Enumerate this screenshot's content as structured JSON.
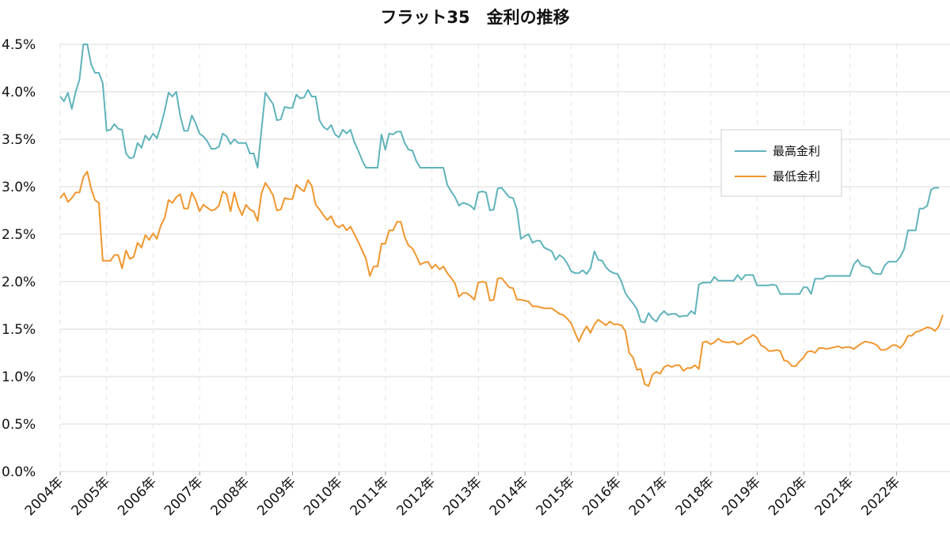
{
  "chart_data": {
    "type": "line",
    "title": "フラット35　金利の推移",
    "xlabel": "",
    "ylabel": "",
    "ylim": [
      0,
      4.5
    ],
    "yticks": [
      "0.0%",
      "0.5%",
      "1.0%",
      "1.5%",
      "2.0%",
      "2.5%",
      "3.0%",
      "3.5%",
      "4.0%",
      "4.5%"
    ],
    "xticks": [
      "2004年",
      "2005年",
      "2006年",
      "2007年",
      "2008年",
      "2009年",
      "2010年",
      "2011年",
      "2012年",
      "2013年",
      "2014年",
      "2015年",
      "2016年",
      "2017年",
      "2018年",
      "2019年",
      "2020年",
      "2021年",
      "2022年"
    ],
    "x_start": 2004,
    "x_step": 0.0833,
    "grid": true,
    "legend_position": "right",
    "colors": {
      "max": "#5fb3bb",
      "min": "#f0962e",
      "grid": "#d9d9d9"
    },
    "series": [
      {
        "name": "最高金利",
        "values": [
          3.95,
          3.9,
          3.99,
          3.82,
          4.0,
          4.13,
          4.5,
          4.5,
          4.29,
          4.2,
          4.2,
          4.09,
          3.59,
          3.6,
          3.66,
          3.61,
          3.6,
          3.35,
          3.3,
          3.31,
          3.46,
          3.41,
          3.54,
          3.49,
          3.56,
          3.51,
          3.64,
          3.8,
          3.99,
          3.95,
          4.0,
          3.75,
          3.59,
          3.59,
          3.75,
          3.67,
          3.56,
          3.53,
          3.48,
          3.4,
          3.4,
          3.42,
          3.56,
          3.53,
          3.45,
          3.5,
          3.46,
          3.46,
          3.46,
          3.35,
          3.35,
          3.2,
          3.6,
          3.99,
          3.93,
          3.87,
          3.7,
          3.71,
          3.84,
          3.83,
          3.83,
          3.97,
          3.93,
          3.94,
          4.02,
          3.95,
          3.95,
          3.7,
          3.63,
          3.6,
          3.65,
          3.55,
          3.52,
          3.6,
          3.56,
          3.6,
          3.47,
          3.38,
          3.28,
          3.2,
          3.2,
          3.2,
          3.2,
          3.55,
          3.39,
          3.56,
          3.55,
          3.58,
          3.58,
          3.46,
          3.39,
          3.38,
          3.27,
          3.2,
          3.2,
          3.2,
          3.2,
          3.2,
          3.2,
          3.2,
          3.02,
          2.95,
          2.89,
          2.8,
          2.83,
          2.82,
          2.8,
          2.76,
          2.94,
          2.95,
          2.94,
          2.75,
          2.76,
          2.98,
          2.99,
          2.94,
          2.89,
          2.88,
          2.76,
          2.45,
          2.48,
          2.5,
          2.41,
          2.43,
          2.43,
          2.36,
          2.34,
          2.32,
          2.23,
          2.28,
          2.25,
          2.19,
          2.11,
          2.09,
          2.09,
          2.12,
          2.08,
          2.14,
          2.32,
          2.23,
          2.22,
          2.15,
          2.11,
          2.09,
          2.08,
          2.0,
          1.88,
          1.82,
          1.77,
          1.71,
          1.58,
          1.57,
          1.67,
          1.61,
          1.58,
          1.65,
          1.69,
          1.65,
          1.66,
          1.66,
          1.63,
          1.64,
          1.64,
          1.69,
          1.66,
          1.97,
          1.99,
          1.99,
          1.99,
          2.05,
          2.01,
          2.01,
          2.01,
          2.01,
          2.01,
          2.07,
          2.02,
          2.07,
          2.07,
          2.07,
          1.96,
          1.96,
          1.96,
          1.96,
          1.97,
          1.96,
          1.87,
          1.87,
          1.87,
          1.87,
          1.87,
          1.87,
          1.94,
          1.94,
          1.87,
          2.03,
          2.03,
          2.03,
          2.06,
          2.06,
          2.06,
          2.06,
          2.06,
          2.06,
          2.06,
          2.18,
          2.23,
          2.17,
          2.16,
          2.15,
          2.09,
          2.08,
          2.08,
          2.17,
          2.21,
          2.21,
          2.21,
          2.26,
          2.34,
          2.54,
          2.54,
          2.54,
          2.77,
          2.77,
          2.8,
          2.97,
          2.99,
          2.99
        ]
      },
      {
        "name": "最低金利",
        "values": [
          2.88,
          2.93,
          2.84,
          2.88,
          2.94,
          2.94,
          3.1,
          3.16,
          2.98,
          2.86,
          2.83,
          2.22,
          2.22,
          2.22,
          2.28,
          2.28,
          2.14,
          2.33,
          2.24,
          2.26,
          2.41,
          2.36,
          2.49,
          2.44,
          2.51,
          2.45,
          2.59,
          2.67,
          2.86,
          2.83,
          2.89,
          2.92,
          2.77,
          2.77,
          2.94,
          2.86,
          2.74,
          2.81,
          2.78,
          2.75,
          2.76,
          2.8,
          2.95,
          2.92,
          2.74,
          2.94,
          2.79,
          2.7,
          2.81,
          2.76,
          2.74,
          2.64,
          2.93,
          3.04,
          2.98,
          2.91,
          2.75,
          2.76,
          2.88,
          2.87,
          2.87,
          3.02,
          2.98,
          2.95,
          3.07,
          3.01,
          2.81,
          2.76,
          2.7,
          2.65,
          2.69,
          2.6,
          2.57,
          2.6,
          2.54,
          2.58,
          2.5,
          2.42,
          2.33,
          2.24,
          2.06,
          2.16,
          2.16,
          2.4,
          2.4,
          2.54,
          2.54,
          2.63,
          2.63,
          2.47,
          2.38,
          2.35,
          2.27,
          2.18,
          2.2,
          2.21,
          2.14,
          2.18,
          2.13,
          2.16,
          2.09,
          2.04,
          1.98,
          1.84,
          1.88,
          1.88,
          1.85,
          1.81,
          1.99,
          2.0,
          1.99,
          1.8,
          1.81,
          2.03,
          2.04,
          1.99,
          1.94,
          1.93,
          1.81,
          1.81,
          1.8,
          1.79,
          1.74,
          1.74,
          1.73,
          1.72,
          1.72,
          1.72,
          1.69,
          1.66,
          1.65,
          1.61,
          1.56,
          1.46,
          1.37,
          1.46,
          1.53,
          1.46,
          1.55,
          1.6,
          1.57,
          1.54,
          1.58,
          1.55,
          1.55,
          1.54,
          1.48,
          1.25,
          1.2,
          1.07,
          1.08,
          0.92,
          0.9,
          1.02,
          1.05,
          1.03,
          1.1,
          1.12,
          1.1,
          1.12,
          1.12,
          1.06,
          1.09,
          1.09,
          1.12,
          1.08,
          1.36,
          1.37,
          1.34,
          1.36,
          1.4,
          1.37,
          1.36,
          1.36,
          1.37,
          1.34,
          1.35,
          1.39,
          1.41,
          1.44,
          1.41,
          1.33,
          1.31,
          1.27,
          1.27,
          1.28,
          1.27,
          1.17,
          1.16,
          1.11,
          1.11,
          1.16,
          1.2,
          1.26,
          1.27,
          1.25,
          1.3,
          1.3,
          1.29,
          1.3,
          1.31,
          1.32,
          1.3,
          1.31,
          1.31,
          1.29,
          1.32,
          1.35,
          1.37,
          1.36,
          1.35,
          1.33,
          1.28,
          1.28,
          1.3,
          1.33,
          1.33,
          1.3,
          1.35,
          1.43,
          1.43,
          1.47,
          1.48,
          1.5,
          1.52,
          1.51,
          1.48,
          1.53,
          1.65
        ]
      }
    ]
  }
}
